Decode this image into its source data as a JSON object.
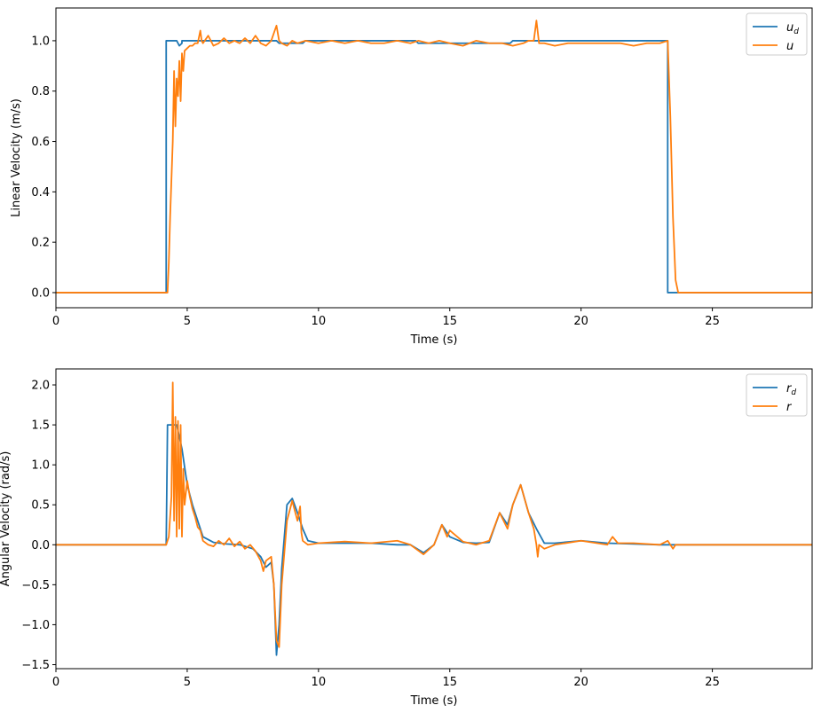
{
  "chart_data": [
    {
      "type": "line",
      "xlabel": "Time (s)",
      "ylabel": "Linear Velocity (m/s)",
      "xlim": [
        0,
        28.8
      ],
      "ylim": [
        -0.06,
        1.13
      ],
      "xticks": [
        0,
        5,
        10,
        15,
        20,
        25
      ],
      "yticks": [
        0.0,
        0.2,
        0.4,
        0.6,
        0.8,
        1.0
      ],
      "ytick_labels": [
        "0.0",
        "0.2",
        "0.4",
        "0.6",
        "0.8",
        "1.0"
      ],
      "grid": false,
      "legend_position": "top-right",
      "series": [
        {
          "name": "u_d",
          "legend": {
            "base": "u",
            "sub": "d"
          },
          "color": "#1f77b4",
          "x": [
            0,
            4.2,
            4.2,
            4.6,
            4.7,
            4.8,
            4.8,
            8.4,
            8.5,
            8.6,
            9.4,
            9.5,
            13.7,
            13.8,
            17.3,
            17.4,
            17.8,
            17.9,
            23.3,
            23.3,
            28.8
          ],
          "y": [
            0.0,
            0.0,
            1.0,
            1.0,
            0.98,
            0.99,
            1.0,
            1.0,
            0.99,
            0.99,
            0.99,
            1.0,
            1.0,
            0.99,
            0.99,
            1.0,
            1.0,
            1.0,
            1.0,
            0.0,
            0.0
          ]
        },
        {
          "name": "u",
          "legend": {
            "base": "u",
            "sub": ""
          },
          "color": "#ff7f0e",
          "x": [
            0,
            4.25,
            4.3,
            4.35,
            4.4,
            4.45,
            4.5,
            4.55,
            4.6,
            4.65,
            4.7,
            4.75,
            4.8,
            4.85,
            4.9,
            5.0,
            5.1,
            5.2,
            5.3,
            5.4,
            5.5,
            5.55,
            5.6,
            5.8,
            6.0,
            6.2,
            6.4,
            6.6,
            6.8,
            7.0,
            7.2,
            7.4,
            7.6,
            7.8,
            8.0,
            8.2,
            8.4,
            8.5,
            8.6,
            8.8,
            9.0,
            9.2,
            9.5,
            10.0,
            10.5,
            11.0,
            11.5,
            12.0,
            12.5,
            13.0,
            13.5,
            13.8,
            14.2,
            14.6,
            15.0,
            15.5,
            16.0,
            16.5,
            17.0,
            17.4,
            17.8,
            18.0,
            18.2,
            18.3,
            18.4,
            18.6,
            19.0,
            19.5,
            20.0,
            20.5,
            21.0,
            21.5,
            22.0,
            22.5,
            23.0,
            23.3,
            23.4,
            23.5,
            23.6,
            23.7,
            24.0,
            25.0,
            26.0,
            27.0,
            28.8
          ],
          "y": [
            0.0,
            0.0,
            0.12,
            0.3,
            0.45,
            0.6,
            0.88,
            0.66,
            0.85,
            0.78,
            0.92,
            0.76,
            0.95,
            0.88,
            0.96,
            0.97,
            0.98,
            0.98,
            0.99,
            0.99,
            1.04,
            1.0,
            0.99,
            1.02,
            0.98,
            0.99,
            1.01,
            0.99,
            1.0,
            0.99,
            1.01,
            0.99,
            1.02,
            0.99,
            0.98,
            1.0,
            1.06,
            1.0,
            0.99,
            0.98,
            1.0,
            0.99,
            1.0,
            0.99,
            1.0,
            0.99,
            1.0,
            0.99,
            0.99,
            1.0,
            0.99,
            1.0,
            0.99,
            1.0,
            0.99,
            0.98,
            1.0,
            0.99,
            0.99,
            0.98,
            0.99,
            1.0,
            1.0,
            1.08,
            0.99,
            0.99,
            0.98,
            0.99,
            0.99,
            0.99,
            0.99,
            0.99,
            0.98,
            0.99,
            0.99,
            1.0,
            0.7,
            0.3,
            0.05,
            0.0,
            0.0,
            0.0,
            0.0,
            0.0,
            0.0
          ]
        }
      ]
    },
    {
      "type": "line",
      "xlabel": "Time (s)",
      "ylabel": "Angular Velocity (rad/s)",
      "xlim": [
        0,
        28.8
      ],
      "ylim": [
        -1.55,
        2.2
      ],
      "xticks": [
        0,
        5,
        10,
        15,
        20,
        25
      ],
      "yticks": [
        -1.5,
        -1.0,
        -0.5,
        0.0,
        0.5,
        1.0,
        1.5,
        2.0
      ],
      "ytick_labels": [
        "−1.5",
        "−1.0",
        "−0.5",
        "0.0",
        "0.5",
        "1.0",
        "1.5",
        "2.0"
      ],
      "grid": false,
      "legend_position": "top-right",
      "series": [
        {
          "name": "r_d",
          "legend": {
            "base": "r",
            "sub": "d"
          },
          "color": "#1f77b4",
          "x": [
            0,
            4.2,
            4.25,
            4.6,
            4.8,
            5.0,
            5.2,
            5.4,
            5.6,
            6.0,
            6.5,
            7.0,
            7.5,
            7.8,
            8.0,
            8.2,
            8.3,
            8.4,
            8.5,
            8.6,
            8.8,
            9.0,
            9.2,
            9.4,
            9.6,
            10.0,
            11.0,
            12.0,
            13.0,
            13.5,
            14.0,
            14.4,
            14.7,
            15.0,
            15.5,
            16.0,
            16.5,
            16.9,
            17.2,
            17.4,
            17.7,
            18.0,
            18.3,
            18.6,
            19.0,
            20.0,
            21.0,
            22.0,
            23.0,
            23.5,
            28.8
          ],
          "y": [
            0.0,
            0.0,
            1.5,
            1.5,
            1.2,
            0.75,
            0.5,
            0.3,
            0.1,
            0.03,
            0.01,
            0.0,
            -0.05,
            -0.15,
            -0.28,
            -0.22,
            -0.5,
            -1.38,
            -1.0,
            -0.3,
            0.5,
            0.58,
            0.4,
            0.2,
            0.05,
            0.02,
            0.02,
            0.02,
            0.0,
            0.0,
            -0.1,
            0.0,
            0.25,
            0.1,
            0.03,
            0.02,
            0.03,
            0.4,
            0.25,
            0.5,
            0.75,
            0.4,
            0.2,
            0.02,
            0.02,
            0.05,
            0.02,
            0.01,
            0.0,
            0.0,
            0.0
          ]
        },
        {
          "name": "r",
          "legend": {
            "base": "r",
            "sub": ""
          },
          "color": "#ff7f0e",
          "x": [
            0,
            4.2,
            4.3,
            4.4,
            4.45,
            4.5,
            4.55,
            4.6,
            4.65,
            4.7,
            4.75,
            4.8,
            4.85,
            4.9,
            5.0,
            5.1,
            5.2,
            5.3,
            5.4,
            5.5,
            5.6,
            5.8,
            6.0,
            6.2,
            6.4,
            6.6,
            6.8,
            7.0,
            7.2,
            7.4,
            7.6,
            7.8,
            7.9,
            8.0,
            8.2,
            8.3,
            8.4,
            8.5,
            8.6,
            8.8,
            9.0,
            9.2,
            9.3,
            9.35,
            9.4,
            9.6,
            10.0,
            11.0,
            12.0,
            13.0,
            13.5,
            14.0,
            14.4,
            14.7,
            14.9,
            15.0,
            15.5,
            16.0,
            16.5,
            16.9,
            17.2,
            17.4,
            17.7,
            18.0,
            18.2,
            18.3,
            18.35,
            18.4,
            18.6,
            19.0,
            20.0,
            21.0,
            21.2,
            21.4,
            22.0,
            23.0,
            23.3,
            23.5,
            23.6,
            28.8
          ],
          "y": [
            0.0,
            0.0,
            0.1,
            0.6,
            2.03,
            0.3,
            1.6,
            0.1,
            1.55,
            0.2,
            1.5,
            0.1,
            0.95,
            0.5,
            0.8,
            0.6,
            0.45,
            0.35,
            0.22,
            0.18,
            0.05,
            0.0,
            -0.02,
            0.05,
            0.0,
            0.08,
            -0.02,
            0.04,
            -0.05,
            0.0,
            -0.08,
            -0.2,
            -0.33,
            -0.2,
            -0.15,
            -0.5,
            -1.2,
            -1.28,
            -0.5,
            0.3,
            0.55,
            0.3,
            0.48,
            0.15,
            0.05,
            0.0,
            0.02,
            0.04,
            0.02,
            0.05,
            0.0,
            -0.12,
            0.0,
            0.25,
            0.1,
            0.18,
            0.04,
            0.0,
            0.05,
            0.4,
            0.2,
            0.5,
            0.75,
            0.4,
            0.2,
            0.0,
            -0.15,
            0.0,
            -0.05,
            0.0,
            0.05,
            0.0,
            0.1,
            0.02,
            0.02,
            0.0,
            0.05,
            -0.05,
            0.0,
            0.0
          ]
        }
      ]
    }
  ]
}
